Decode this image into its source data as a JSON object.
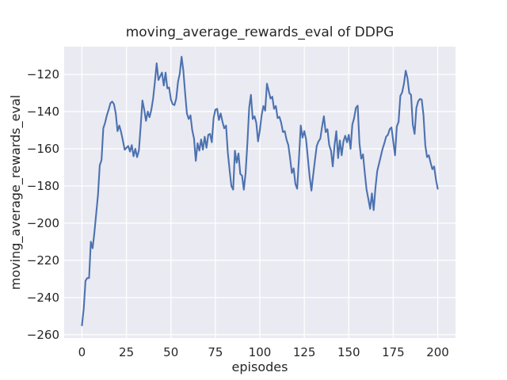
{
  "figure": {
    "background": "#ffffff"
  },
  "chart_data": {
    "type": "line",
    "title": "moving_average_rewards_eval of DDPG",
    "xlabel": "episodes",
    "ylabel": "moving_average_rewards_eval",
    "legend": null,
    "grid": true,
    "style": "seaborn-darkgrid",
    "colors": {
      "line": "#4c72b0",
      "plot_background": "#eaeaf2",
      "gridline": "#ffffff",
      "text": "#262626"
    },
    "xlim": [
      -10,
      210
    ],
    "ylim": [
      -261.8,
      -105.1
    ],
    "xticks": [
      0,
      25,
      50,
      75,
      100,
      125,
      150,
      175,
      200
    ],
    "xtick_labels": [
      "0",
      "25",
      "50",
      "75",
      "100",
      "125",
      "150",
      "175",
      "200"
    ],
    "yticks": [
      -260,
      -240,
      -220,
      -200,
      -180,
      -160,
      -140,
      -120
    ],
    "ytick_labels": [
      "−260",
      "−240",
      "−220",
      "−200",
      "−180",
      "−160",
      "−140",
      "−120"
    ],
    "x_start": 0,
    "x_step": 1,
    "series_name": "moving_average_rewards_eval",
    "values": [
      -255,
      -246,
      -231,
      -229.5,
      -229.5,
      -210,
      -213.5,
      -205,
      -195,
      -185,
      -169,
      -166,
      -149,
      -146,
      -142,
      -139,
      -135.5,
      -134.6,
      -136,
      -141,
      -150.5,
      -147.5,
      -151,
      -155.5,
      -160.5,
      -159.5,
      -158.5,
      -161.5,
      -158,
      -164,
      -160,
      -164.5,
      -161,
      -148,
      -134,
      -139,
      -145,
      -140,
      -143,
      -139,
      -133,
      -124,
      -114,
      -123,
      -121,
      -119,
      -126,
      -119,
      -127.5,
      -127,
      -133.5,
      -136,
      -136.5,
      -133,
      -124,
      -119.5,
      -110.5,
      -118,
      -130,
      -141,
      -144,
      -142,
      -150,
      -154.5,
      -166.5,
      -157,
      -161,
      -155,
      -160.5,
      -153.5,
      -159.5,
      -152.5,
      -152,
      -156.5,
      -143.5,
      -139,
      -138.5,
      -144.5,
      -141,
      -145.5,
      -149,
      -147.5,
      -162,
      -171.5,
      -180,
      -182,
      -161,
      -167.5,
      -162.5,
      -173.5,
      -174.5,
      -182,
      -173,
      -157,
      -138,
      -131,
      -144,
      -142.5,
      -146,
      -156,
      -150,
      -142,
      -137,
      -139.5,
      -125,
      -129,
      -133,
      -132,
      -138.5,
      -137,
      -143.5,
      -142.8,
      -146,
      -151,
      -150.5,
      -155,
      -158,
      -165,
      -173,
      -170.5,
      -179,
      -181.5,
      -165,
      -147.5,
      -154,
      -150.5,
      -155,
      -165,
      -175,
      -182.5,
      -174,
      -166,
      -158.5,
      -156,
      -154.5,
      -148,
      -142.5,
      -151,
      -149.5,
      -158,
      -161,
      -169.5,
      -158,
      -150.5,
      -165,
      -155.5,
      -163.5,
      -156,
      -153,
      -156.5,
      -152.5,
      -160,
      -147,
      -143.5,
      -138,
      -136.8,
      -157,
      -165.3,
      -163,
      -173,
      -182,
      -187,
      -192.3,
      -184,
      -193,
      -181,
      -172,
      -168,
      -164,
      -160,
      -157,
      -153.5,
      -152.5,
      -149.5,
      -148.5,
      -156,
      -163.5,
      -148,
      -145.5,
      -131.5,
      -129.7,
      -125,
      -118,
      -122,
      -130,
      -131,
      -147,
      -152,
      -138,
      -134.5,
      -133.2,
      -133.5,
      -142,
      -158,
      -164.5,
      -163.5,
      -167.5,
      -171,
      -169.5,
      -176.5,
      -181.5
    ]
  }
}
